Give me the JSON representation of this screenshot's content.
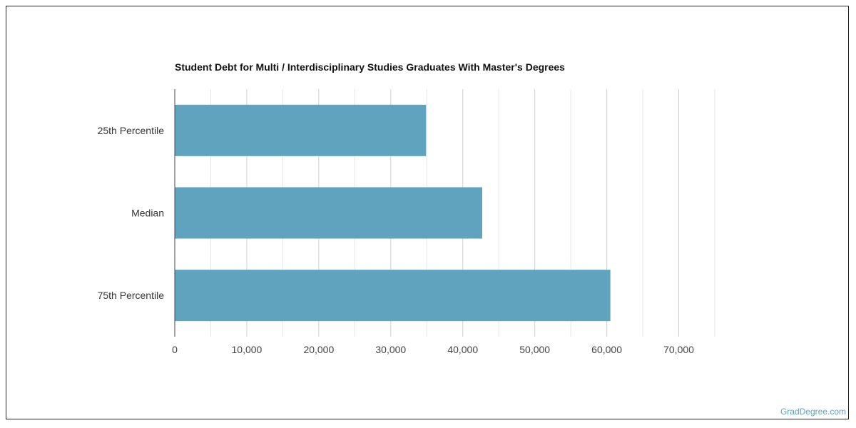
{
  "chart_data": {
    "type": "bar",
    "orientation": "horizontal",
    "title": "Student Debt for Multi / Interdisciplinary Studies Graduates With Master's Degrees",
    "categories": [
      "25th Percentile",
      "Median",
      "75th Percentile"
    ],
    "values": [
      34900,
      42700,
      60500
    ],
    "xlim": [
      0,
      75000
    ],
    "xticks": [
      0,
      10000,
      20000,
      30000,
      40000,
      50000,
      60000,
      70000
    ],
    "xtick_labels": [
      "0",
      "10,000",
      "20,000",
      "30,000",
      "40,000",
      "50,000",
      "60,000",
      "70,000"
    ],
    "grid": true,
    "bar_color": "#5fa3bf"
  },
  "watermark": "GradDegree.com"
}
